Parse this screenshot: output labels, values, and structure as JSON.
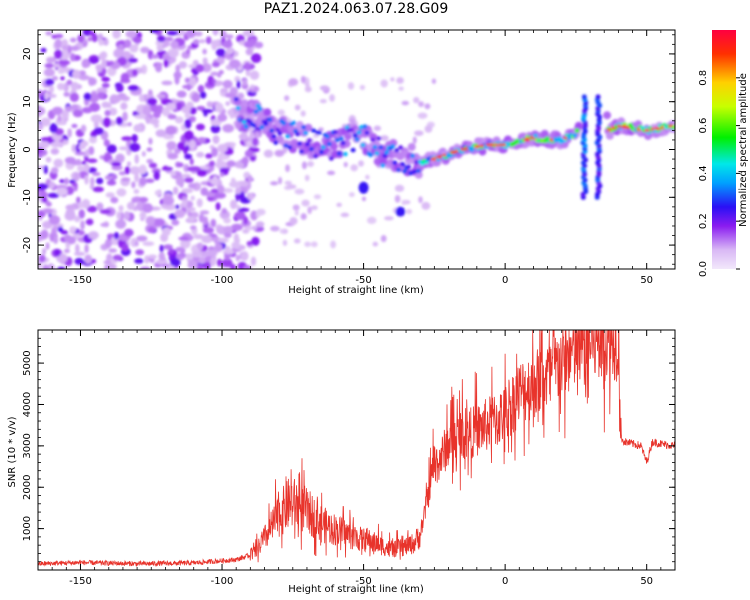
{
  "title": "PAZ1.2024.063.07.28.G09",
  "colors": {
    "snr_line": "#e8332b",
    "axis": "#000000",
    "spectrogram_low": "#d9b8f5",
    "spectrogram_high": "#ff0000"
  },
  "chart_data": [
    {
      "type": "heatmap",
      "xlabel": "Height of straight line (km)",
      "ylabel": "Frequency (Hz)",
      "xlim": [
        -165,
        60
      ],
      "ylim": [
        -25,
        25
      ],
      "x_ticks": [
        -150,
        -100,
        -50,
        0,
        50
      ],
      "y_ticks": [
        -20,
        -10,
        0,
        10,
        20
      ],
      "colorbar": {
        "label": "Normalized spectral amplitude",
        "range": [
          0.0,
          1.0
        ],
        "ticks": [
          0.0,
          0.2,
          0.4,
          0.6,
          0.8
        ],
        "colormap": "gist_rainbow_r (purple to red)"
      },
      "signal_trace": {
        "x": [
          -95,
          -90,
          -85,
          -80,
          -75,
          -70,
          -65,
          -60,
          -55,
          -50,
          -45,
          -40,
          -35,
          -30,
          -25,
          -20,
          -15,
          -10,
          -5,
          0,
          5,
          10,
          15,
          20,
          25,
          28,
          31,
          34,
          37,
          40,
          45,
          50,
          55,
          60
        ],
        "y": [
          8,
          7,
          6,
          4,
          3,
          2,
          1,
          1,
          2,
          3,
          0,
          -1,
          -2,
          -3,
          -2,
          -1,
          0,
          0.5,
          1,
          1,
          1.5,
          2.5,
          2,
          2,
          3,
          10,
          -10,
          10,
          4,
          5,
          4.5,
          4,
          4.5,
          5
        ]
      },
      "noise_region_x": [
        -165,
        -95
      ]
    },
    {
      "type": "line",
      "xlabel": "Height of straight line (km)",
      "ylabel": "SNR (10 * v/v)",
      "xlim": [
        -165,
        60
      ],
      "ylim": [
        0,
        5800
      ],
      "x_ticks": [
        -150,
        -100,
        -50,
        0,
        50
      ],
      "y_ticks": [
        1000,
        2000,
        3000,
        4000,
        5000
      ],
      "series": [
        {
          "x": [
            -165,
            -150,
            -130,
            -110,
            -95,
            -88,
            -84,
            -80,
            -76,
            -72,
            -68,
            -64,
            -60,
            -56,
            -52,
            -48,
            -44,
            -40,
            -36,
            -32,
            -30,
            -28,
            -26,
            -25,
            -24,
            -20,
            -15,
            -10,
            -5,
            0,
            5,
            10,
            15,
            20,
            25,
            30,
            35,
            40,
            41,
            42,
            45,
            48,
            50,
            52,
            55,
            60
          ],
          "y": [
            150,
            180,
            150,
            170,
            250,
            400,
            800,
            1200,
            1500,
            1400,
            1200,
            1000,
            900,
            800,
            700,
            650,
            550,
            450,
            500,
            600,
            800,
            1500,
            2200,
            2600,
            2500,
            3000,
            3200,
            3300,
            3500,
            3700,
            4200,
            4400,
            4600,
            4900,
            5200,
            5400,
            5500,
            5500,
            3200,
            3100,
            3050,
            3000,
            2600,
            3100,
            3050,
            3000
          ]
        }
      ]
    }
  ]
}
